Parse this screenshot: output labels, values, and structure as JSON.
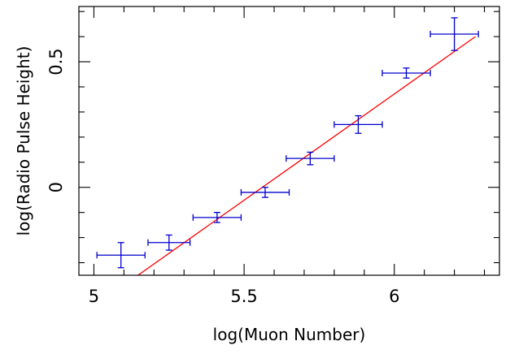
{
  "chart_data": {
    "type": "scatter",
    "title": "",
    "xlabel": "log(Muon Number)",
    "ylabel": "log(Radio Pulse Height)",
    "xlim": [
      4.95,
      6.35
    ],
    "ylim": [
      -0.35,
      0.72
    ],
    "x_ticks": [
      {
        "value": 5,
        "label": "5"
      },
      {
        "value": 5.5,
        "label": "5.5"
      },
      {
        "value": 6,
        "label": "6"
      }
    ],
    "y_ticks": [
      {
        "value": 0,
        "label": "0"
      },
      {
        "value": 0.5,
        "label": "0.5"
      }
    ],
    "x_minor_step": 0.1,
    "y_minor_step": 0.1,
    "series": [
      {
        "type": "errorbar",
        "color": "#0000cc",
        "points": [
          {
            "x": 5.09,
            "y": -0.27,
            "xerr": 0.08,
            "yerr": 0.05
          },
          {
            "x": 5.25,
            "y": -0.22,
            "xerr": 0.07,
            "yerr": 0.03
          },
          {
            "x": 5.41,
            "y": -0.12,
            "xerr": 0.08,
            "yerr": 0.02
          },
          {
            "x": 5.57,
            "y": -0.02,
            "xerr": 0.08,
            "yerr": 0.02
          },
          {
            "x": 5.72,
            "y": 0.115,
            "xerr": 0.08,
            "yerr": 0.025
          },
          {
            "x": 5.88,
            "y": 0.25,
            "xerr": 0.08,
            "yerr": 0.035
          },
          {
            "x": 6.04,
            "y": 0.455,
            "xerr": 0.08,
            "yerr": 0.02
          },
          {
            "x": 6.2,
            "y": 0.61,
            "xerr": 0.08,
            "yerr": 0.065
          }
        ]
      },
      {
        "type": "fit-line",
        "color": "#ff0000",
        "x": [
          5.135,
          6.27
        ],
        "y": [
          -0.36,
          0.6
        ]
      }
    ]
  }
}
